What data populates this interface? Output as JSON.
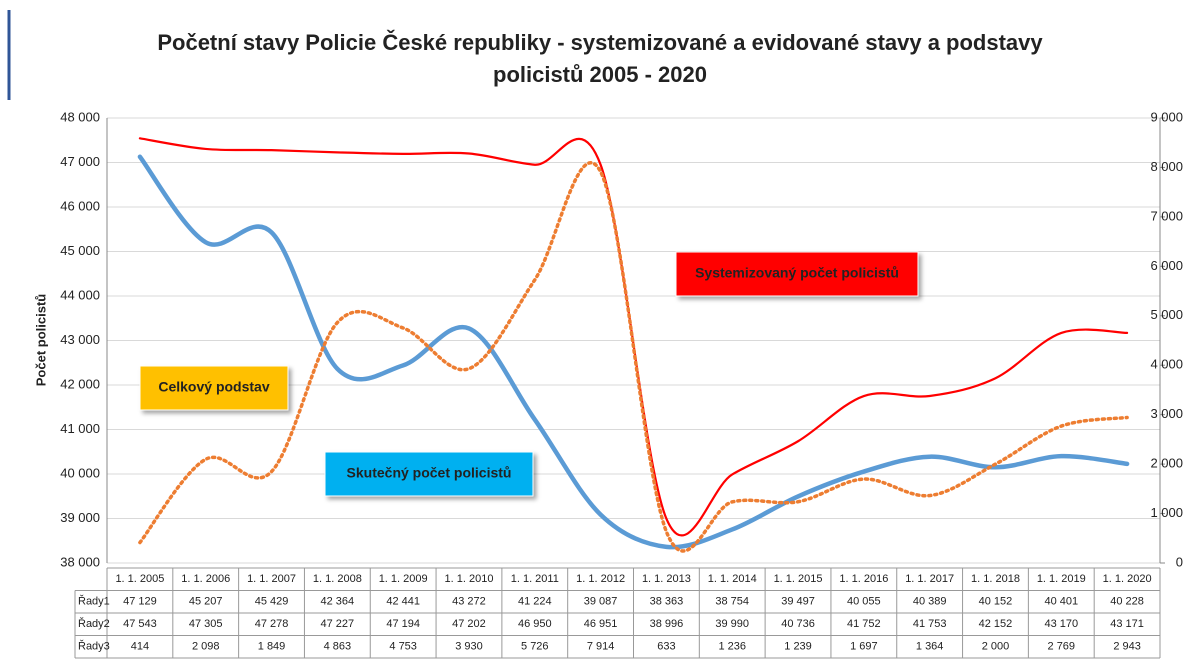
{
  "chart_data": {
    "type": "line",
    "title": [
      "Početní stavy Policie České republiky - systemizované a evidované stavy a podstavy",
      "policistů 2005 - 2020"
    ],
    "y_label": "Počet policistů",
    "categories": [
      "1. 1. 2005",
      "1. 1. 2006",
      "1. 1. 2007",
      "1. 1. 2008",
      "1. 1. 2009",
      "1. 1. 2010",
      "1. 1. 2011",
      "1. 1. 2012",
      "1. 1. 2013",
      "1. 1. 2014",
      "1. 1. 2015",
      "1. 1. 2016",
      "1. 1. 2017",
      "1. 1. 2018",
      "1. 1. 2019",
      "1. 1. 2020"
    ],
    "series": [
      {
        "name": "Řady1",
        "color": "#5b9bd5",
        "style": "solid",
        "axis": "y",
        "values": [
          47129,
          45207,
          45429,
          42364,
          42441,
          43272,
          41224,
          39087,
          38363,
          38754,
          39497,
          40055,
          40389,
          40152,
          40401,
          40228
        ],
        "value_labels": [
          "47 129",
          "45 207",
          "45 429",
          "42 364",
          "42 441",
          "43 272",
          "41 224",
          "39 087",
          "38 363",
          "38 754",
          "39 497",
          "40 055",
          "40 389",
          "40 152",
          "40 401",
          "40 228"
        ]
      },
      {
        "name": "Řady2",
        "color": "#ff0000",
        "style": "solid",
        "axis": "y",
        "values": [
          47543,
          47305,
          47278,
          47227,
          47194,
          47202,
          46950,
          46951,
          38996,
          39990,
          40736,
          41752,
          41753,
          42152,
          43170,
          43171
        ],
        "value_labels": [
          "47 543",
          "47 305",
          "47 278",
          "47 227",
          "47 194",
          "47 202",
          "46 950",
          "46 951",
          "38 996",
          "39 990",
          "40 736",
          "41 752",
          "41 753",
          "42 152",
          "43 170",
          "43 171"
        ]
      },
      {
        "name": "Řady3",
        "color": "#ed7d31",
        "style": "dotted",
        "axis": "y2",
        "values": [
          414,
          2098,
          1849,
          4863,
          4753,
          3930,
          5726,
          7914,
          633,
          1236,
          1239,
          1697,
          1364,
          2000,
          2769,
          2943
        ],
        "value_labels": [
          "414",
          "2 098",
          "1 849",
          "4 863",
          "4 753",
          "3 930",
          "5 726",
          "7 914",
          "633",
          "1 236",
          "1 239",
          "1 697",
          "1 364",
          "2 000",
          "2 769",
          "2 943"
        ]
      }
    ],
    "annotations": [
      {
        "text": "Systemizovaný počet policistů",
        "color": "#ff0000"
      },
      {
        "text": "Celkový podstav",
        "color": "#ffc000"
      },
      {
        "text": "Skutečný počet policistů",
        "color": "#00b0f0"
      }
    ],
    "ylim": [
      38000,
      48000
    ],
    "yticks": [
      {
        "value": 38000,
        "label": "38 000"
      },
      {
        "value": 39000,
        "label": "39 000"
      },
      {
        "value": 40000,
        "label": "40 000"
      },
      {
        "value": 41000,
        "label": "41 000"
      },
      {
        "value": 42000,
        "label": "42 000"
      },
      {
        "value": 43000,
        "label": "43 000"
      },
      {
        "value": 44000,
        "label": "44 000"
      },
      {
        "value": 45000,
        "label": "45 000"
      },
      {
        "value": 46000,
        "label": "46 000"
      },
      {
        "value": 47000,
        "label": "47 000"
      },
      {
        "value": 48000,
        "label": "48 000"
      }
    ],
    "y2lim": [
      0,
      9000
    ],
    "y2ticks": [
      0,
      {
        "value": 1000,
        "label": "1 000"
      },
      {
        "value": 2000,
        "label": "2 000"
      },
      {
        "value": 3000,
        "label": "3 000"
      },
      {
        "value": 4000,
        "label": "4 000"
      },
      {
        "value": 5000,
        "label": "5 000"
      },
      {
        "value": 6000,
        "label": "6 000"
      },
      {
        "value": 7000,
        "label": "7 000"
      },
      {
        "value": 8000,
        "label": "8 000"
      },
      {
        "value": 9000,
        "label": "9 000"
      }
    ],
    "grid": true
  }
}
